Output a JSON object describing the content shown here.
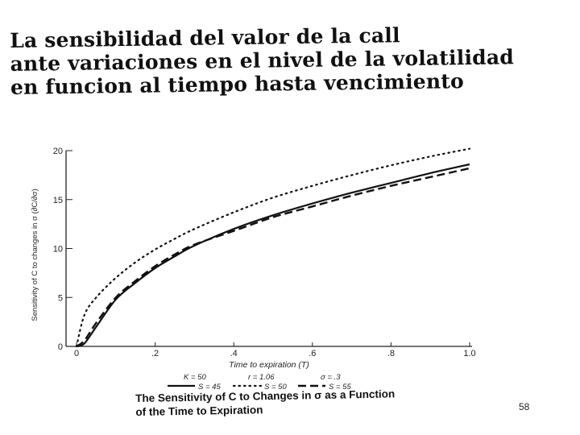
{
  "slide": {
    "title_lines": [
      "La sensibilidad del valor de la call",
      "ante variaciones en el nivel de la volatilidad",
      "en funcion al tiempo hasta vencimiento"
    ],
    "caption_lines": [
      "The Sensitivity of C to Changes in σ as a Function",
      "of the Time to Expiration"
    ],
    "page_number": "58"
  },
  "chart_data": {
    "type": "line",
    "title": "",
    "xlabel": "Time to expiration (T)",
    "ylabel": "Sensitivity of C to changes in σ (∂C/∂σ)",
    "xlim": [
      0,
      1.0
    ],
    "ylim": [
      0,
      20
    ],
    "x_ticks": [
      "0",
      ".2",
      ".4",
      ".6",
      ".8",
      "1.0"
    ],
    "y_ticks": [
      "0",
      "5",
      "10",
      "15",
      "20"
    ],
    "legend_line1": [
      "K = 50",
      "r = 1.06",
      "σ = .3"
    ],
    "legend_position": "bottom",
    "x": [
      0.0,
      0.02,
      0.05,
      0.1,
      0.15,
      0.2,
      0.25,
      0.3,
      0.4,
      0.5,
      0.6,
      0.7,
      0.8,
      0.9,
      1.0
    ],
    "series": [
      {
        "name": "S = 45",
        "style": "solid",
        "values": [
          0,
          0.3,
          2.0,
          4.8,
          6.5,
          8.0,
          9.2,
          10.3,
          12.0,
          13.4,
          14.6,
          15.7,
          16.7,
          17.7,
          18.6
        ]
      },
      {
        "name": "S = 50",
        "style": "dotted",
        "values": [
          0,
          3.2,
          5.0,
          7.0,
          8.6,
          9.9,
          11.0,
          12.0,
          13.7,
          15.2,
          16.4,
          17.5,
          18.5,
          19.4,
          20.2
        ]
      },
      {
        "name": "S = 55",
        "style": "dashed",
        "values": [
          0,
          0.6,
          2.4,
          5.0,
          6.7,
          8.2,
          9.4,
          10.4,
          11.8,
          13.2,
          14.3,
          15.4,
          16.4,
          17.3,
          18.2
        ]
      }
    ]
  }
}
